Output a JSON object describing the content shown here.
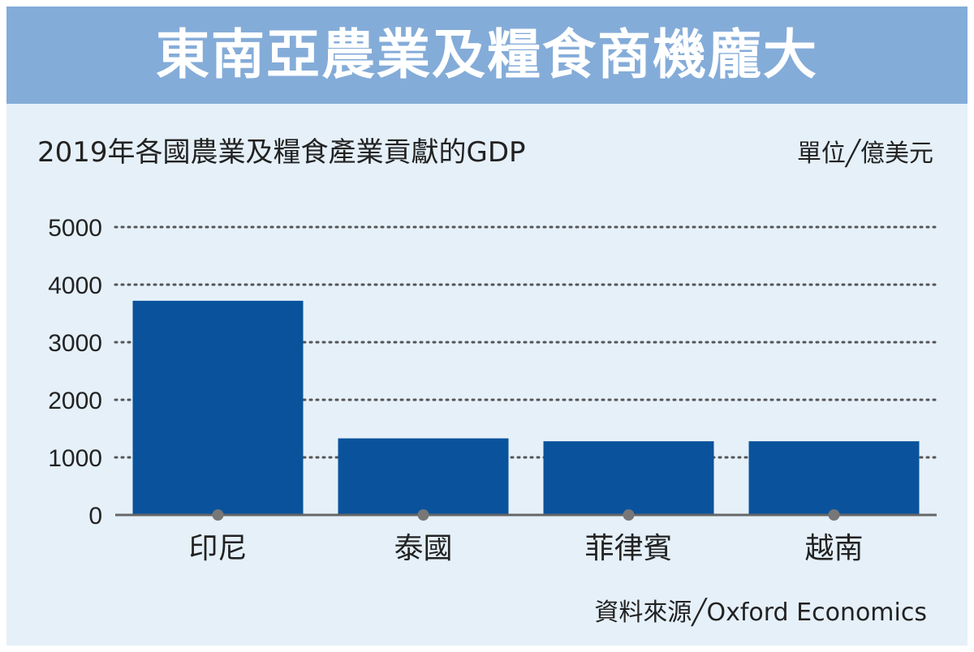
{
  "title": "東南亞農業及糧食商機龐大",
  "subtitle": "2019年各國農業及糧食產業貢獻的GDP",
  "unit": "單位╱億美元",
  "source": "資料來源╱Oxford Economics",
  "colors": {
    "banner": "#84acd8",
    "background": "#e5f0f9",
    "bar": "#0a539c",
    "grid": "#555555"
  },
  "chart_data": {
    "type": "bar",
    "title": "2019年各國農業及糧食產業貢獻的GDP",
    "xlabel": "",
    "ylabel": "",
    "unit": "單位╱億美元",
    "categories": [
      "印尼",
      "泰國",
      "菲律賓",
      "越南"
    ],
    "values": [
      3720,
      1330,
      1280,
      1280
    ],
    "ylim": [
      0,
      5000
    ],
    "yticks": [
      0,
      1000,
      2000,
      3000,
      4000,
      5000
    ],
    "grid": true,
    "legend": "none"
  }
}
